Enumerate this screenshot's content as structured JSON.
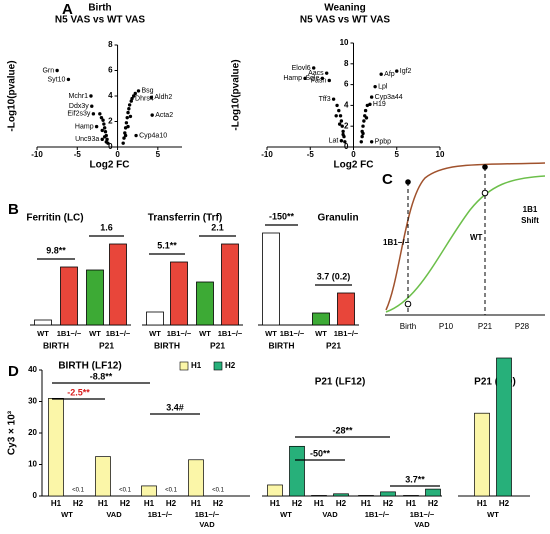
{
  "panel_labels": [
    "A",
    "B",
    "C",
    "D"
  ],
  "chart_data": [
    {
      "type": "scatter",
      "title": "Birth",
      "subtitle": "N5 VAS vs WT VAS",
      "x_label": "Log2 FC",
      "y_label": "-Log10(pvalue)",
      "xlim": [
        -10,
        8
      ],
      "xticks": [
        -10,
        -5,
        0,
        5
      ],
      "ylim": [
        0,
        8
      ],
      "yticks": [
        0,
        2,
        4,
        6,
        8
      ],
      "color": "#000000",
      "x": [
        -7.5,
        -6.1,
        -3.3,
        -3.2,
        -3.0,
        -2.6,
        -1.9,
        2.6,
        1.8,
        4.2,
        4.3,
        2.3,
        -1.2,
        -1.3,
        -1.4,
        -1.5,
        -1.6,
        -1.7,
        -1.8,
        -2.0,
        -2.2,
        -1.4,
        -1.6,
        -1.9,
        0.7,
        0.8,
        0.9,
        1.0,
        1.1,
        1.2,
        1.3,
        1.4,
        1.5,
        1.7,
        2.0,
        1.0,
        1.3,
        1.6,
        2.2
      ],
      "values": [
        6.0,
        5.3,
        4.0,
        3.2,
        2.6,
        1.6,
        0.6,
        4.4,
        3.8,
        3.9,
        2.5,
        0.9,
        0.3,
        0.6,
        0.9,
        1.2,
        1.5,
        1.8,
        2.1,
        2.3,
        2.6,
        0.4,
        0.8,
        1.3,
        0.3,
        0.7,
        1.1,
        1.5,
        1.9,
        2.3,
        2.7,
        3.0,
        3.3,
        3.6,
        4.0,
        0.9,
        1.6,
        2.4,
        4.2
      ],
      "point_labels": [
        "Grn",
        "Syt10",
        "Mchr1",
        "Ddx3y",
        "Eif2s3y",
        "Hamp",
        "Unc93a",
        "Bsg",
        "Dhrs4",
        "Aldh2",
        "Acta2",
        "Cyp4a10",
        null,
        null,
        null,
        null,
        null,
        null,
        null,
        null,
        null,
        null,
        null,
        null,
        null,
        null,
        null,
        null,
        null,
        null,
        null,
        null,
        null,
        null,
        null,
        null,
        null,
        null,
        null
      ]
    },
    {
      "type": "scatter",
      "title": "Weaning",
      "subtitle": "N5 VAS vs WT VAS",
      "x_label": "Log2 FC",
      "y_label": "-Log10(pvalue)",
      "xlim": [
        -10,
        10
      ],
      "xticks": [
        -10,
        -5,
        0,
        5,
        10
      ],
      "ylim": [
        0,
        10
      ],
      "yticks": [
        0,
        2,
        4,
        6,
        8,
        10
      ],
      "color": "#000000",
      "x": [
        -4.6,
        -3.1,
        -5.6,
        -3.6,
        -2.8,
        -2.3,
        -1.4,
        3.2,
        5.0,
        2.5,
        2.1,
        1.9,
        2.1,
        -1.0,
        -1.1,
        -1.2,
        -1.3,
        -1.4,
        -1.5,
        -1.7,
        -1.9,
        -1.2,
        -1.6,
        -2.0,
        0.9,
        1.0,
        1.0,
        1.1,
        1.2,
        1.3,
        1.4,
        1.6,
        1.1,
        1.5
      ],
      "values": [
        7.6,
        7.1,
        6.6,
        6.6,
        6.4,
        4.6,
        0.6,
        7.0,
        7.3,
        5.8,
        4.8,
        4.1,
        0.5,
        0.5,
        1.0,
        1.5,
        2.0,
        2.5,
        3.0,
        3.5,
        4.0,
        1.2,
        2.2,
        3.0,
        0.5,
        1.0,
        1.5,
        2.0,
        2.5,
        3.0,
        3.5,
        4.0,
        1.3,
        2.8
      ],
      "point_labels": [
        "Elovl6",
        "Aacs",
        "Hamp",
        "Sqle",
        "Fasn",
        "Tff3",
        "Lat",
        "Afp",
        "Igf2",
        "Lpl",
        "Cyp3a44",
        "H19",
        "Ppbp",
        null,
        null,
        null,
        null,
        null,
        null,
        null,
        null,
        null,
        null,
        null,
        null,
        null,
        null,
        null,
        null,
        null,
        null,
        null,
        null,
        null
      ]
    },
    {
      "type": "bar",
      "title": "Ferritin (LC)",
      "categories": [
        "WT",
        "1B1−/−",
        "WT",
        "1B1−/−"
      ],
      "groups": [
        "BIRTH",
        "P21"
      ],
      "values": [
        5,
        58,
        55,
        81
      ],
      "colors": [
        "#ffffff",
        "#e8463a",
        "#3daa35",
        "#e8463a"
      ],
      "ylim": [
        0,
        100
      ],
      "annotations": [
        {
          "text": "9.8**"
        },
        {
          "text": "1.6"
        }
      ]
    },
    {
      "type": "bar",
      "title": "Transferrin (Trf)",
      "categories": [
        "WT",
        "1B1−/−",
        "WT",
        "1B1−/−"
      ],
      "groups": [
        "BIRTH",
        "P21"
      ],
      "values": [
        13,
        63,
        43,
        81
      ],
      "colors": [
        "#ffffff",
        "#e8463a",
        "#3daa35",
        "#e8463a"
      ],
      "ylim": [
        0,
        100
      ],
      "annotations": [
        {
          "text": "5.1**"
        },
        {
          "text": "2.1"
        }
      ]
    },
    {
      "type": "bar",
      "title": "Granulin",
      "categories": [
        "WT",
        "1B1−/−",
        "WT",
        "1B1−/−"
      ],
      "groups": [
        "BIRTH",
        "P21"
      ],
      "values": [
        92,
        0,
        12,
        32
      ],
      "colors": [
        "#ffffff",
        "#e8463a",
        "#3daa35",
        "#e8463a"
      ],
      "ylim": [
        0,
        100
      ],
      "annotations": [
        {
          "text": "-150**"
        },
        {
          "text": "3.7 (0.2)"
        }
      ]
    },
    {
      "type": "grouped",
      "title": "BIRTH (LF12)",
      "y_label": "Cy3 × 10³",
      "legend": "top-right",
      "categories": [
        [
          "WT"
        ],
        [
          "VAD"
        ],
        [
          "1B1−/−"
        ],
        [
          "1B1−/−",
          "VAD"
        ]
      ],
      "series": [
        {
          "name": "H1",
          "color": "#fbf6a8",
          "values": [
            31,
            12.5,
            3.2,
            11.5
          ]
        },
        {
          "name": "H2",
          "color": "#27b07a",
          "values": [
            0.05,
            0.05,
            0.05,
            0.05
          ],
          "value_labels": [
            "<0.1",
            "<0.1",
            "<0.1",
            "<0.1"
          ]
        }
      ],
      "ylim": [
        0,
        40
      ],
      "yticks": [
        0,
        10,
        20,
        30,
        40
      ],
      "annotations": [
        {
          "text": "-8.8**",
          "color": "#000000"
        },
        {
          "text": "-2.5**",
          "color": "#d81e1e"
        },
        {
          "text": "3.4#",
          "color": "#000000"
        }
      ]
    },
    {
      "type": "grouped",
      "title": "P21 (LF12)",
      "categories": [
        [
          "WT"
        ],
        [
          "VAD"
        ],
        [
          "1B1−/−"
        ],
        [
          "1B1−/−",
          "VAD"
        ]
      ],
      "series": [
        {
          "name": "H1",
          "color": "#fbf6a8",
          "values": [
            4,
            0.2,
            0.2,
            0.2
          ]
        },
        {
          "name": "H2",
          "color": "#27b07a",
          "values": [
            18,
            0.8,
            1.5,
            2.5
          ]
        }
      ],
      "ylim": [
        0,
        50
      ],
      "annotations": [
        {
          "text": "-28**",
          "color": "#000000"
        },
        {
          "text": "-50**",
          "color": "#000000"
        },
        {
          "text": "3.7**",
          "color": "#000000"
        }
      ]
    },
    {
      "type": "grouped",
      "title": "P21 (BD)",
      "categories": [
        [
          "WT"
        ]
      ],
      "series": [
        {
          "name": "H1",
          "color": "#fbf6a8",
          "values": [
            30
          ]
        },
        {
          "name": "H2",
          "color": "#27b07a",
          "values": [
            50
          ]
        }
      ],
      "ylim": [
        0,
        50
      ],
      "annotations": []
    }
  ],
  "diagram": {
    "x_ticks": [
      "Birth",
      "P10",
      "P21",
      "P28"
    ],
    "curve_labels": [
      "1B1−/−",
      "WT"
    ],
    "shift_label": [
      "1B1",
      "Shift"
    ]
  }
}
